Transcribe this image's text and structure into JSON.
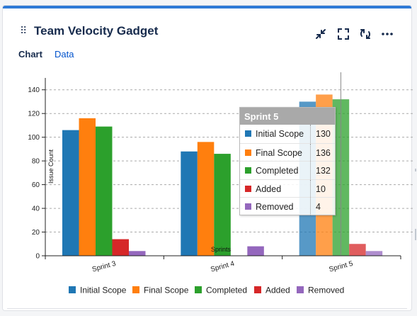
{
  "gadget": {
    "title": "Team Velocity Gadget",
    "drag_handle": "⠿",
    "actions": [
      "collapse-icon",
      "fullscreen-icon",
      "refresh-icon",
      "more-icon"
    ]
  },
  "tabs": [
    {
      "label": "Chart",
      "active": true
    },
    {
      "label": "Data",
      "active": false
    }
  ],
  "colors": {
    "accent": "#2f7ad6",
    "Initial Scope": "#1f77b4",
    "Final Scope": "#ff7f0e",
    "Completed": "#2ca02c",
    "Added": "#d62728",
    "Removed": "#9467bd"
  },
  "chart_data": {
    "type": "bar",
    "categories": [
      "Sprint 3",
      "Sprint 4",
      "Sprint 5"
    ],
    "series": [
      {
        "name": "Initial Scope",
        "values": [
          106,
          88,
          130
        ]
      },
      {
        "name": "Final Scope",
        "values": [
          116,
          96,
          136
        ]
      },
      {
        "name": "Completed",
        "values": [
          109,
          86,
          132
        ]
      },
      {
        "name": "Added",
        "values": [
          14,
          0,
          10
        ]
      },
      {
        "name": "Removed",
        "values": [
          4,
          8,
          4
        ]
      }
    ],
    "ylabel": "Issue Count",
    "xlabel": "Sprints",
    "ylim": [
      0,
      150
    ],
    "yticks": [
      0,
      20,
      40,
      60,
      80,
      100,
      120,
      140
    ],
    "grid": "horizontal dashed",
    "legend": "bottom",
    "highlighted_category": "Sprint 5"
  },
  "tooltip": {
    "title": "Sprint 5",
    "rows": [
      {
        "name": "Initial Scope",
        "value": "130"
      },
      {
        "name": "Final Scope",
        "value": "136"
      },
      {
        "name": "Completed",
        "value": "132"
      },
      {
        "name": "Added",
        "value": "10"
      },
      {
        "name": "Removed",
        "value": "4"
      }
    ]
  }
}
